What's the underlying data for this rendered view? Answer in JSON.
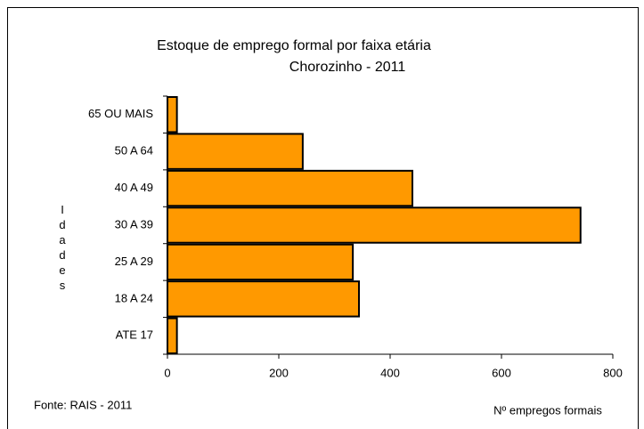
{
  "chart_data": {
    "type": "bar",
    "orientation": "horizontal",
    "title": "Estoque de emprego formal por faixa etária",
    "subtitle": "Chorozinho - 2011",
    "y_label": "Idades",
    "x_label": "Nº empregos formais",
    "source": "Fonte: RAIS - 2011",
    "categories": [
      "65 OU MAIS",
      "50 A 64",
      "40 A 49",
      "30 A 39",
      "25 A 29",
      "18 A 24",
      "ATE 17"
    ],
    "values": [
      17,
      243,
      440,
      742,
      333,
      344,
      17
    ],
    "color": "#ff9900",
    "xlim": [
      0,
      800
    ],
    "xticks": [
      0,
      200,
      400,
      600,
      800
    ],
    "grid": false
  }
}
